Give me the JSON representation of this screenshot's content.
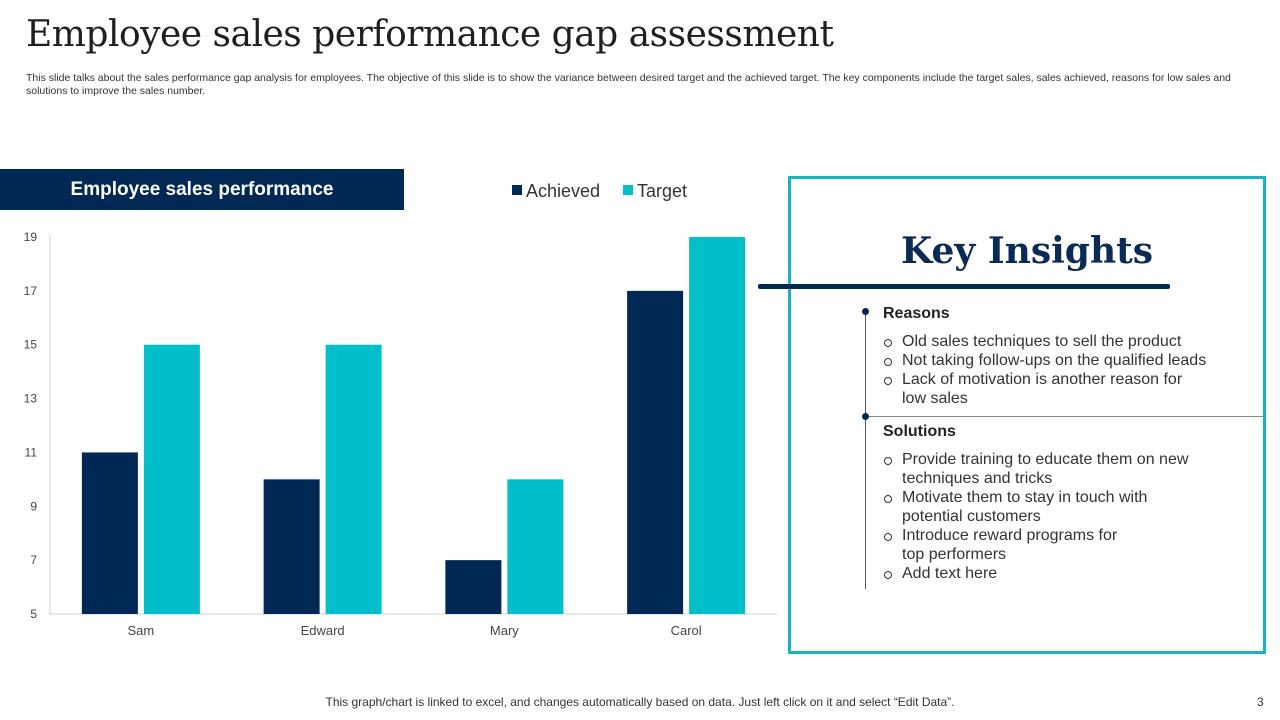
{
  "slide": {
    "title": "Employee sales performance gap assessment",
    "subtitle": "This slide talks about the sales performance gap analysis for employees. The objective of this slide is to show the variance between desired target and the achieved target. The key components include the target sales, sales achieved, reasons for low sales and solutions to improve the sales number.",
    "footer_note": "This graph/chart is linked to excel,  and changes automatically based on data. Just left click on it and select “Edit Data”.",
    "page_number": "3"
  },
  "chart_panel": {
    "banner": "Employee sales performance"
  },
  "chart_data": {
    "type": "bar",
    "title": "",
    "xlabel": "",
    "ylabel": "",
    "categories": [
      "Sam",
      "Edward",
      "Mary",
      "Carol"
    ],
    "series": [
      {
        "name": "Achieved",
        "values": [
          11,
          10,
          7,
          17
        ],
        "color": "#002855"
      },
      {
        "name": "Target",
        "values": [
          15,
          15,
          10,
          19
        ],
        "color": "#00bfcb"
      }
    ],
    "ylim": [
      5,
      19
    ],
    "yticks": [
      5,
      7,
      9,
      11,
      13,
      15,
      17,
      19
    ],
    "legend_position": "top",
    "grid": false
  },
  "insights": {
    "title": "Key Insights",
    "reasons": {
      "heading": "Reasons",
      "items": [
        "Old sales techniques to sell the product",
        "Not taking follow-ups on the qualified leads",
        "Lack of motivation is another reason for low sales"
      ]
    },
    "solutions": {
      "heading": "Solutions",
      "items": [
        "Provide training to educate them on new techniques and tricks",
        "Motivate them to stay in touch with potential customers",
        "Introduce  reward programs for top performers",
        "Add text here"
      ]
    }
  },
  "colors": {
    "navy": "#002855",
    "teal": "#00bfcb",
    "frame": "#17b5c2"
  }
}
